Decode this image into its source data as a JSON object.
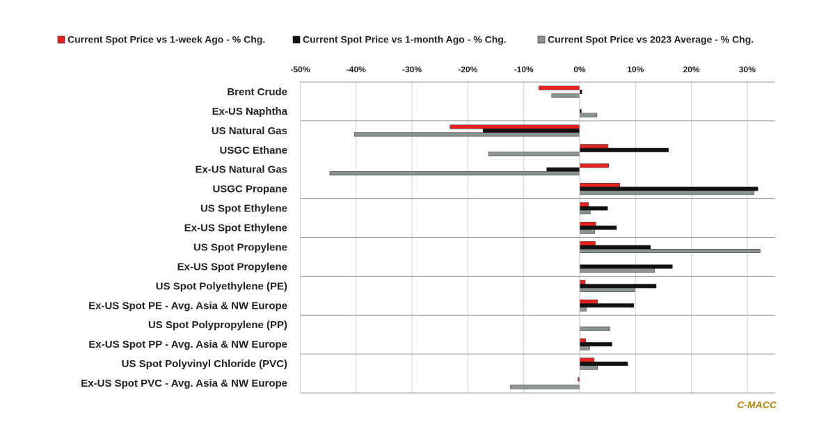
{
  "colors": {
    "week": "#e8201e",
    "month": "#111111",
    "avg2023": "#8c948f",
    "grid": "#cfcfcf",
    "separator": "#9a9a9a",
    "source": "#b8860b"
  },
  "source_label": "C-MACC",
  "chart_data": {
    "type": "bar",
    "orientation": "horizontal",
    "xlim": [
      -50,
      35
    ],
    "x_ticks": [
      "-50%",
      "-40%",
      "-30%",
      "-20%",
      "-10%",
      "0%",
      "10%",
      "20%",
      "30%"
    ],
    "x_tick_values": [
      -50,
      -40,
      -30,
      -20,
      -10,
      0,
      10,
      20,
      30
    ],
    "grid": true,
    "legend_position": "top",
    "group_separators_after": [
      1,
      5,
      7,
      9,
      11,
      13
    ],
    "categories": [
      "Brent Crude",
      "Ex-US Naphtha",
      "US Natural Gas",
      "USGC Ethane",
      "Ex-US Natural Gas",
      "USGC Propane",
      "US Spot Ethylene",
      "Ex-US Spot Ethylene",
      "US Spot Propylene",
      "Ex-US Spot Propylene",
      "US Spot Polyethylene (PE)",
      "Ex-US Spot PE - Avg. Asia & NW Europe",
      "US Spot Polypropylene (PP)",
      "Ex-US Spot PP - Avg. Asia & NW Europe",
      "US Spot Polyvinyl Chloride (PVC)",
      "Ex-US Spot PVC - Avg. Asia & NW Europe"
    ],
    "series": [
      {
        "name": "Current Spot Price vs 1-week Ago - % Chg.",
        "color_key": "week",
        "values": [
          -7.3,
          0,
          -23.2,
          5.1,
          5.2,
          7.2,
          1.6,
          2.9,
          2.8,
          0,
          1.0,
          3.2,
          0,
          1.1,
          2.6,
          -0.3
        ]
      },
      {
        "name": "Current Spot Price vs 1-month Ago - % Chg.",
        "color_key": "month",
        "values": [
          0.4,
          0.3,
          -17.3,
          15.9,
          -5.9,
          31.9,
          5.0,
          6.6,
          12.7,
          16.6,
          13.7,
          9.7,
          0,
          5.8,
          8.6,
          0
        ]
      },
      {
        "name": "Current Spot Price vs 2023 Average - % Chg.",
        "color_key": "avg2023",
        "values": [
          -5.0,
          3.1,
          -40.3,
          -16.3,
          -44.7,
          31.2,
          1.9,
          2.7,
          32.3,
          13.4,
          9.9,
          1.2,
          5.4,
          1.8,
          3.2,
          -12.4
        ]
      }
    ]
  }
}
